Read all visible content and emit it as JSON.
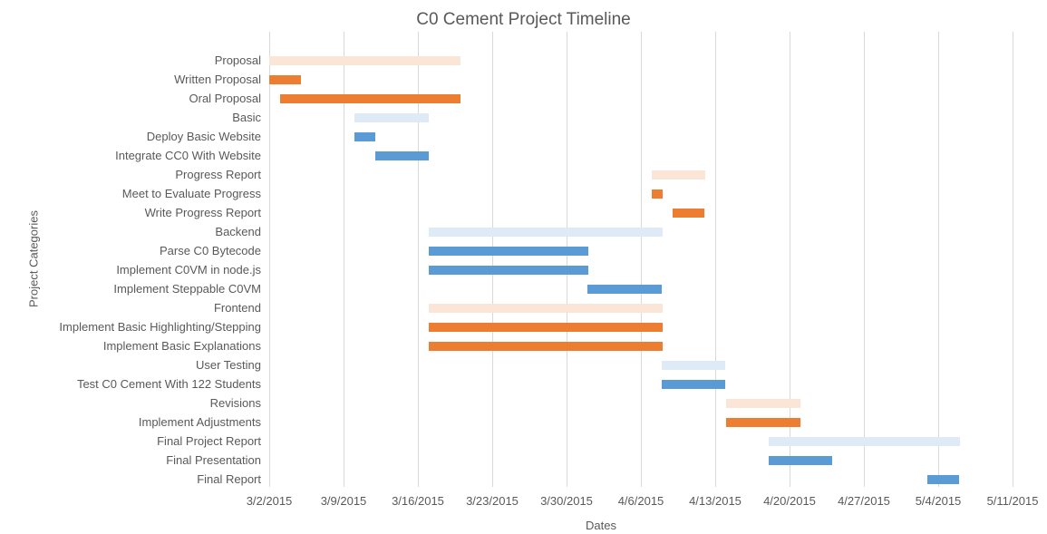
{
  "title": "C0 Cement Project Timeline",
  "x_axis": {
    "label": "Dates",
    "tick_labels": [
      "3/2/2015",
      "3/9/2015",
      "3/16/2015",
      "3/23/2015",
      "3/30/2015",
      "4/6/2015",
      "4/13/2015",
      "4/20/2015",
      "4/27/2015",
      "5/4/2015",
      "5/11/2015"
    ]
  },
  "y_axis": {
    "label": "Project Categories"
  },
  "colors": {
    "background": "#FFFFFF",
    "gridline": "#D9D9D9",
    "text": "#595959",
    "orange": "#ED7D31",
    "orange_light": "#FBE5D6",
    "blue": "#5B9BD5",
    "blue_light": "#DEEBF7"
  },
  "chart_data": {
    "type": "bar",
    "variant": "horizontal-gantt",
    "title": "C0 Cement Project Timeline",
    "xlabel": "Dates",
    "ylabel": "Project Categories",
    "x_range": [
      "3/2/2015",
      "5/11/2015"
    ],
    "tick_interval_days": 7,
    "grid": "vertical-only",
    "legend": "none",
    "tasks": [
      {
        "name": "Proposal",
        "start": "3/2/2015",
        "end": "3/20/2015",
        "color": "orange_light"
      },
      {
        "name": "Written Proposal",
        "start": "3/2/2015",
        "end": "3/5/2015",
        "color": "orange"
      },
      {
        "name": "Oral Proposal",
        "start": "3/3/2015",
        "end": "3/20/2015",
        "color": "orange"
      },
      {
        "name": "Basic",
        "start": "3/10/2015",
        "end": "3/17/2015",
        "color": "blue_light"
      },
      {
        "name": "Deploy Basic Website",
        "start": "3/10/2015",
        "end": "3/12/2015",
        "color": "blue"
      },
      {
        "name": "Integrate CC0 With Website",
        "start": "3/12/2015",
        "end": "3/17/2015",
        "color": "blue"
      },
      {
        "name": "Progress Report",
        "start": "4/7/2015",
        "end": "4/12/2015",
        "color": "orange_light"
      },
      {
        "name": "Meet to Evaluate Progress",
        "start": "4/7/2015",
        "end": "4/8/2015",
        "color": "orange"
      },
      {
        "name": "Write Progress Report",
        "start": "4/9/2015",
        "end": "4/12/2015",
        "color": "orange"
      },
      {
        "name": "Backend",
        "start": "3/17/2015",
        "end": "4/8/2015",
        "color": "blue_light"
      },
      {
        "name": "Parse C0 Bytecode",
        "start": "3/17/2015",
        "end": "4/1/2015",
        "color": "blue"
      },
      {
        "name": "Implement C0VM in node.js",
        "start": "3/17/2015",
        "end": "4/1/2015",
        "color": "blue"
      },
      {
        "name": "Implement Steppable C0VM",
        "start": "4/1/2015",
        "end": "4/8/2015",
        "color": "blue"
      },
      {
        "name": "Frontend",
        "start": "3/17/2015",
        "end": "4/8/2015",
        "color": "orange_light"
      },
      {
        "name": "Implement Basic Highlighting/Stepping",
        "start": "3/17/2015",
        "end": "4/8/2015",
        "color": "orange"
      },
      {
        "name": "Implement Basic Explanations",
        "start": "3/17/2015",
        "end": "4/8/2015",
        "color": "orange"
      },
      {
        "name": "User Testing",
        "start": "4/8/2015",
        "end": "4/14/2015",
        "color": "blue_light"
      },
      {
        "name": "Test C0 Cement With 122 Students",
        "start": "4/8/2015",
        "end": "4/14/2015",
        "color": "blue"
      },
      {
        "name": "Revisions",
        "start": "4/14/2015",
        "end": "4/21/2015",
        "color": "orange_light"
      },
      {
        "name": "Implement Adjustments",
        "start": "4/14/2015",
        "end": "4/21/2015",
        "color": "orange"
      },
      {
        "name": "Final Project Report",
        "start": "4/18/2015",
        "end": "5/6/2015",
        "color": "blue_light"
      },
      {
        "name": "Final Presentation",
        "start": "4/18/2015",
        "end": "4/24/2015",
        "color": "blue"
      },
      {
        "name": "Final Report",
        "start": "5/3/2015",
        "end": "5/6/2015",
        "color": "blue"
      }
    ]
  }
}
